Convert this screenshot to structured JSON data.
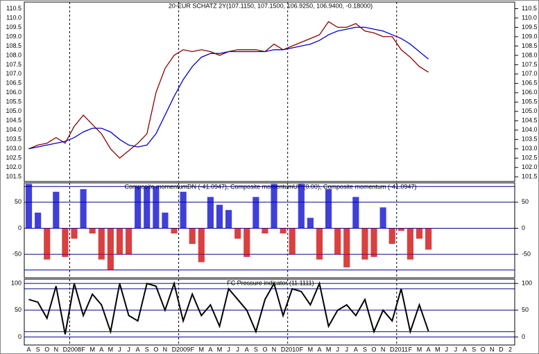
{
  "chart_data": [
    {
      "type": "line",
      "title": "20-EUR SCHATZ 2Y(107.1150, 107.1500, 106.9250, 106.9400, -0.18000)",
      "ylim": [
        101.25,
        110.85
      ],
      "yticks": [
        {
          "value": 101.5,
          "label": "101.5"
        },
        {
          "value": 102,
          "label": "102.0"
        },
        {
          "value": 102.5,
          "label": "102.5"
        },
        {
          "value": 103,
          "label": "103.0"
        },
        {
          "value": 103.5,
          "label": "103.5"
        },
        {
          "value": 104,
          "label": "104.0"
        },
        {
          "value": 104.5,
          "label": "104.5"
        },
        {
          "value": 105,
          "label": "105.0"
        },
        {
          "value": 105.5,
          "label": "105.5"
        },
        {
          "value": 106,
          "label": "106.0"
        },
        {
          "value": 106.5,
          "label": "106.5"
        },
        {
          "value": 107,
          "label": "107.0"
        },
        {
          "value": 107.5,
          "label": "107.5"
        },
        {
          "value": 108,
          "label": "108.0"
        },
        {
          "value": 108.5,
          "label": "108.5"
        },
        {
          "value": 109,
          "label": "109.0"
        },
        {
          "value": 109.5,
          "label": "109.5"
        },
        {
          "value": 110,
          "label": "110.0"
        },
        {
          "value": 110.5,
          "label": "110.5"
        }
      ],
      "series": [
        {
          "color": "#8b0000",
          "values": [
            103.0,
            103.2,
            103.3,
            103.6,
            103.3,
            104.2,
            104.8,
            104.3,
            103.8,
            103.0,
            102.5,
            102.9,
            103.3,
            103.8,
            106.0,
            107.3,
            108.0,
            108.3,
            108.2,
            108.3,
            108.2,
            108.0,
            108.2,
            108.3,
            108.3,
            108.3,
            108.2,
            108.6,
            108.3,
            108.5,
            108.7,
            108.9,
            109.1,
            109.8,
            109.5,
            109.5,
            109.7,
            109.3,
            109.2,
            109.0,
            109.0,
            108.3,
            107.9,
            107.4,
            107.1,
            null,
            null,
            null,
            null,
            null,
            null,
            null,
            null,
            null
          ]
        },
        {
          "color": "#0000cc",
          "values": [
            103.0,
            103.1,
            103.2,
            103.3,
            103.4,
            103.6,
            103.9,
            104.1,
            104.1,
            103.9,
            103.5,
            103.2,
            103.1,
            103.2,
            103.8,
            104.8,
            105.8,
            106.7,
            107.4,
            107.9,
            108.1,
            108.1,
            108.2,
            108.2,
            108.2,
            108.2,
            108.2,
            108.3,
            108.3,
            108.4,
            108.5,
            108.6,
            108.8,
            109.1,
            109.3,
            109.4,
            109.5,
            109.5,
            109.4,
            109.3,
            109.1,
            108.9,
            108.6,
            108.2,
            107.8,
            null,
            null,
            null,
            null,
            null,
            null,
            null,
            null,
            null
          ]
        }
      ]
    },
    {
      "type": "bar",
      "title": "Composite momentumDN (-41.0947), Composite momentumUP (0.00), Composite momentum (-41.0947)",
      "ylim": [
        -95,
        87
      ],
      "yticks": [
        -50,
        0,
        50
      ],
      "levels": [
        80,
        -80
      ],
      "color": "#0000cc",
      "negative_color": "#cc0000",
      "values": [
        85,
        30,
        -60,
        70,
        -55,
        -20,
        75,
        -10,
        -60,
        -80,
        -50,
        -50,
        80,
        80,
        80,
        30,
        -10,
        70,
        -30,
        -65,
        60,
        45,
        35,
        -20,
        -55,
        60,
        -10,
        85,
        -10,
        -50,
        85,
        20,
        -60,
        75,
        -50,
        -75,
        60,
        -60,
        -55,
        40,
        -30,
        -5,
        -60,
        -20,
        -41,
        null,
        null,
        null,
        null,
        null,
        null,
        null,
        null,
        null
      ]
    },
    {
      "type": "line",
      "title": "FC Pressure indicator (11.1111)",
      "ylim": [
        -15,
        108
      ],
      "yticks": [
        0,
        50,
        100
      ],
      "levels": [
        90,
        10
      ],
      "color": "#000000",
      "values": [
        70,
        65,
        35,
        95,
        5,
        100,
        40,
        80,
        60,
        10,
        100,
        40,
        30,
        100,
        95,
        50,
        100,
        30,
        80,
        40,
        60,
        20,
        90,
        70,
        50,
        10,
        70,
        100,
        40,
        90,
        85,
        60,
        100,
        20,
        50,
        60,
        40,
        70,
        10,
        50,
        30,
        90,
        10,
        60,
        11,
        null,
        null,
        null,
        null,
        null,
        null,
        null,
        null,
        null
      ],
      "categories": [
        "A",
        "S",
        "O",
        "N",
        "D",
        "2008",
        "F",
        "M",
        "A",
        "M",
        "J",
        "J",
        "A",
        "S",
        "O",
        "N",
        "D",
        "2009",
        "F",
        "M",
        "A",
        "M",
        "J",
        "J",
        "A",
        "S",
        "O",
        "N",
        "D",
        "2010",
        "F",
        "M",
        "A",
        "M",
        "J",
        "J",
        "A",
        "S",
        "O",
        "N",
        "D",
        "2011",
        "F",
        "M",
        "A",
        "M",
        "J",
        "J",
        "A",
        "S",
        "O",
        "N",
        "D",
        "2"
      ]
    }
  ]
}
